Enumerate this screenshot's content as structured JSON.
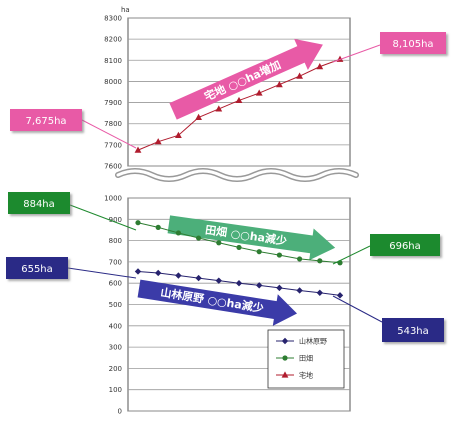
{
  "chart_data": {
    "type": "line",
    "unit_label": "ha",
    "categories": [
      "",
      "",
      "",
      "",
      "",
      "",
      "",
      "",
      "",
      "",
      ""
    ],
    "series": [
      {
        "name": "山林原野",
        "color": "#27236e",
        "marker": "diamond",
        "values": [
          655,
          648,
          636,
          624,
          612,
          600,
          590,
          578,
          566,
          555,
          543
        ]
      },
      {
        "name": "田畑",
        "color": "#2e7d32",
        "marker": "circle",
        "values": [
          884,
          862,
          836,
          812,
          790,
          768,
          748,
          732,
          714,
          705,
          696
        ]
      },
      {
        "name": "宅地",
        "color": "#b01c2e",
        "marker": "triangle",
        "values": [
          7675,
          7715,
          7745,
          7830,
          7870,
          7910,
          7945,
          7985,
          8025,
          8070,
          8105
        ]
      }
    ],
    "upper_axis": {
      "ylim": [
        7600,
        8300
      ],
      "ticks": [
        7600,
        7700,
        7800,
        7900,
        8000,
        8100,
        8200,
        8300
      ]
    },
    "lower_axis": {
      "ylim": [
        0,
        1000
      ],
      "ticks": [
        0,
        100,
        200,
        300,
        400,
        500,
        600,
        700,
        800,
        900,
        1000
      ]
    },
    "grid": true,
    "legend_position": "bottom-right"
  },
  "callouts": {
    "takuchi_start": {
      "text": "7,675ha",
      "color": "#e85aa6"
    },
    "takuchi_end": {
      "text": "8,105ha",
      "color": "#e85aa6"
    },
    "tahata_start": {
      "text": "884ha",
      "color": "#1f8a2f"
    },
    "tahata_end": {
      "text": "696ha",
      "color": "#1f8a2f"
    },
    "sanrin_start": {
      "text": "655ha",
      "color": "#2b2b86"
    },
    "sanrin_end": {
      "text": "543ha",
      "color": "#2b2b86"
    }
  },
  "arrows": {
    "takuchi": {
      "text": "宅地 ○○ha増加",
      "color": "#e85aa6"
    },
    "tahata": {
      "text": "田畑 ○○ha減少",
      "color": "#4caf7a"
    },
    "sanrin": {
      "text": "山林原野 ○○ha減少",
      "color": "#3b3ba8"
    }
  }
}
